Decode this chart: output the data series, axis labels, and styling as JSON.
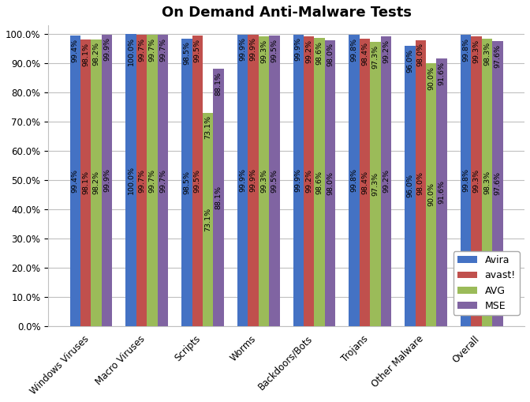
{
  "title": "On Demand Anti-Malware Tests",
  "categories": [
    "Windows Viruses",
    "Macro Viruses",
    "Scripts",
    "Worms",
    "Backdoors/Bots",
    "Trojans",
    "Other Malware",
    "Overall"
  ],
  "series": {
    "Avira": [
      99.4,
      100.0,
      98.5,
      99.9,
      99.9,
      99.8,
      96.0,
      99.8
    ],
    "avast!": [
      98.1,
      99.7,
      99.5,
      99.9,
      99.2,
      98.4,
      98.0,
      99.3
    ],
    "AVG": [
      98.2,
      99.7,
      73.1,
      99.3,
      98.6,
      97.3,
      90.0,
      98.3
    ],
    "MSE": [
      99.9,
      99.7,
      88.1,
      99.5,
      98.0,
      99.2,
      91.6,
      97.6
    ]
  },
  "series_order": [
    "Avira",
    "avast!",
    "AVG",
    "MSE"
  ],
  "colors": {
    "Avira": "#4472C4",
    "avast!": "#C0504D",
    "AVG": "#9BBB59",
    "MSE": "#8064A2"
  },
  "bar_width": 0.19,
  "ylim": [
    0.0,
    103.0
  ],
  "yticks": [
    0.0,
    10.0,
    20.0,
    30.0,
    40.0,
    50.0,
    60.0,
    70.0,
    80.0,
    90.0,
    100.0
  ],
  "legend_loc": "lower right",
  "background_color": "#FFFFFF",
  "grid_color": "#C0C0C0",
  "title_fontsize": 13,
  "label_fontsize": 6.8,
  "tick_fontsize": 8.5
}
